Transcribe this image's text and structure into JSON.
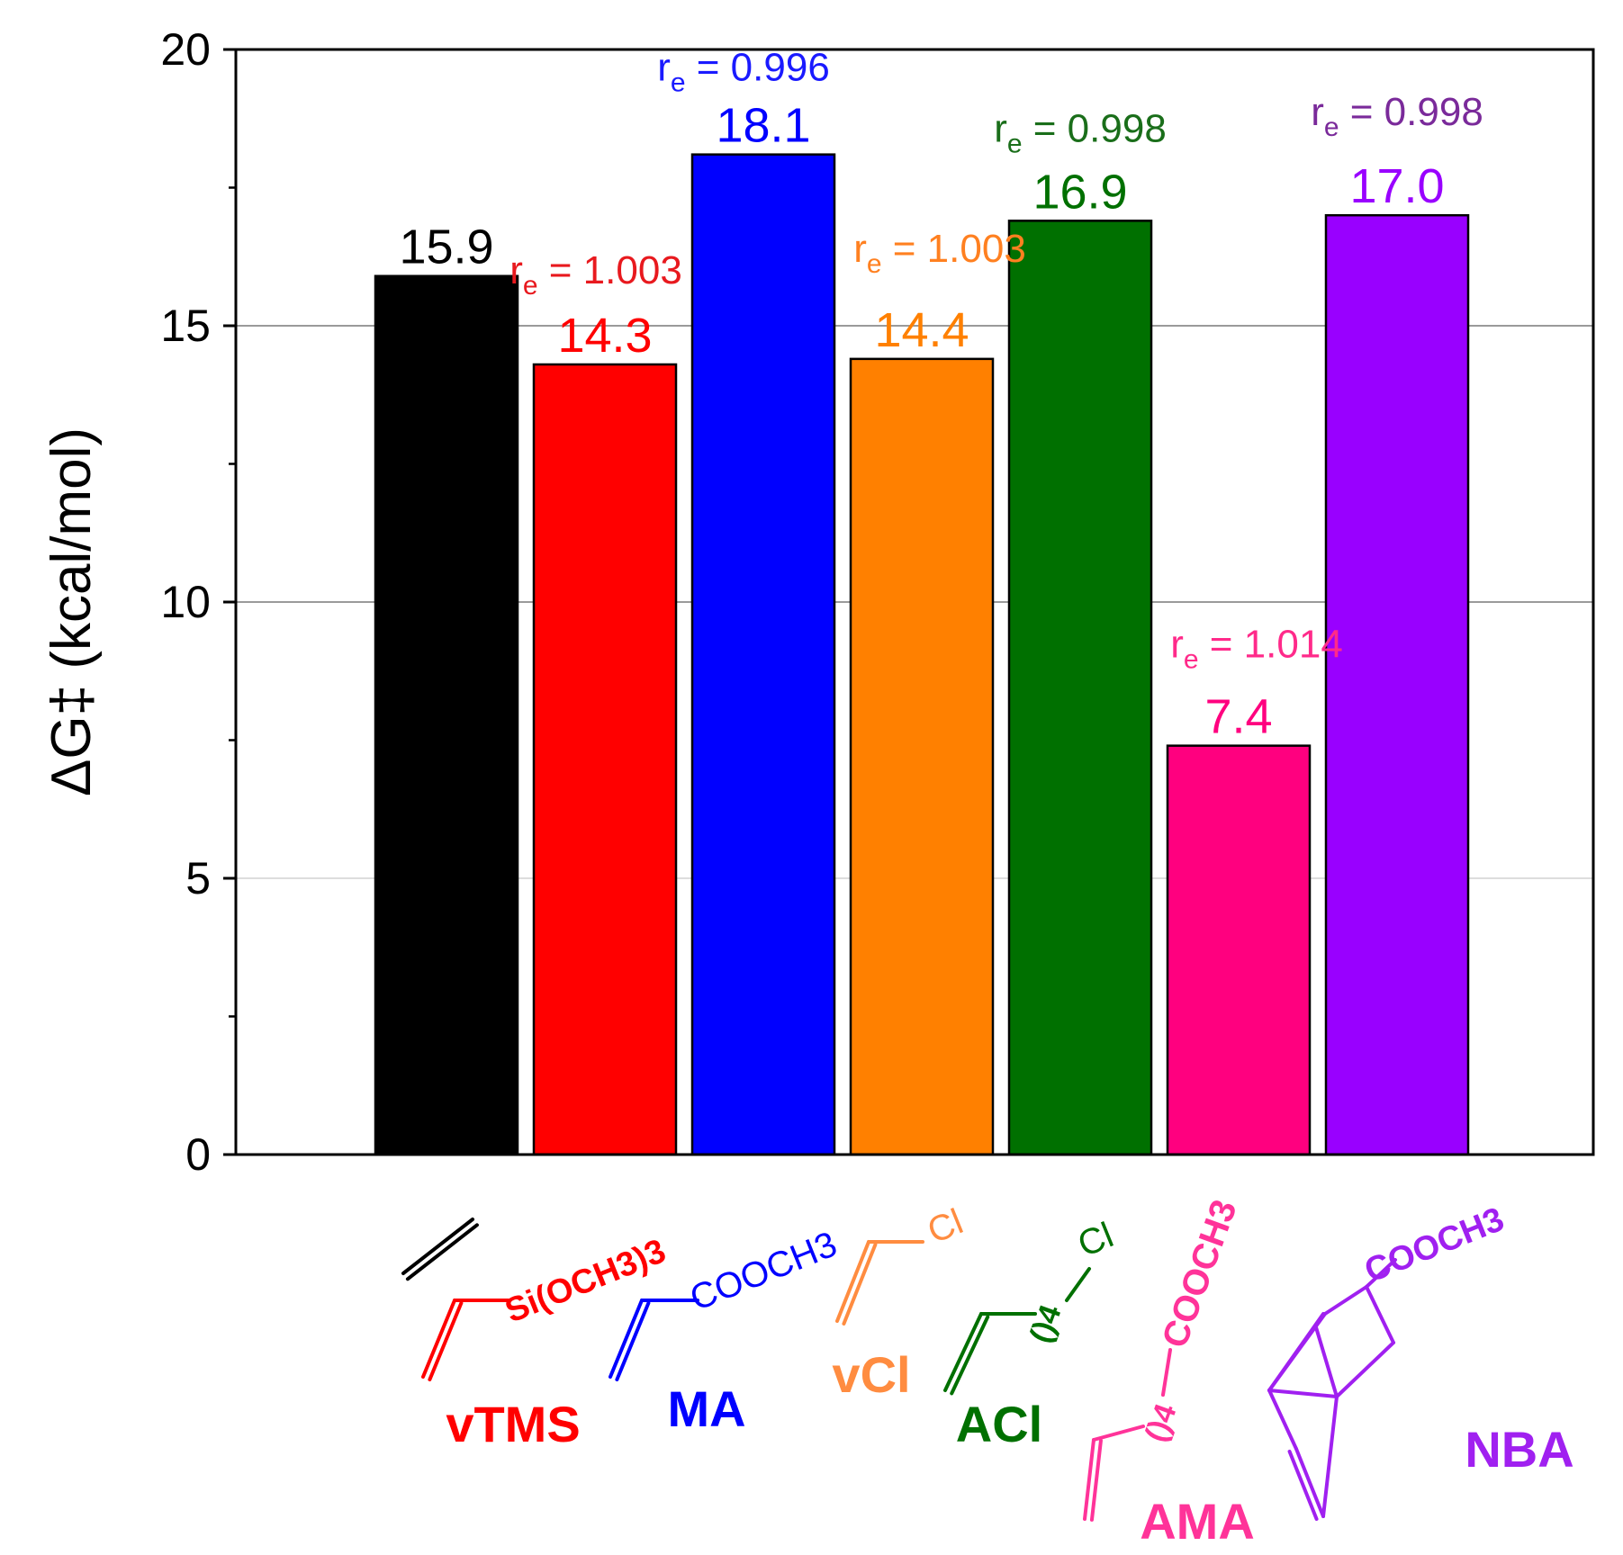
{
  "chart_data": {
    "type": "bar",
    "title": "",
    "xlabel": "",
    "ylabel": "ΔG‡ (kcal/mol)",
    "ylim": [
      0,
      20
    ],
    "yticks": [
      0,
      5,
      10,
      15,
      20
    ],
    "gridlines": [
      5,
      10,
      15
    ],
    "categories": [
      "ethylene",
      "vTMS",
      "MA",
      "vCl",
      "ACl",
      "AMA",
      "NBA"
    ],
    "values": [
      15.9,
      14.3,
      18.1,
      14.4,
      16.9,
      7.4,
      17.0
    ],
    "value_labels": [
      "15.9",
      "14.3",
      "18.1",
      "14.4",
      "16.9",
      "7.4",
      "17.0"
    ],
    "colors": [
      "#000000",
      "#ff0000",
      "#0000ff",
      "#ff8000",
      "#007000",
      "#ff007f",
      "#9900ff"
    ],
    "re_labels": [
      null,
      {
        "prefix": "r",
        "sub": "e",
        "rest": " = 1.003",
        "color": "#e8191e"
      },
      {
        "prefix": "r",
        "sub": "e",
        "rest": " = 0.996",
        "color": "#1a1aff"
      },
      {
        "prefix": "r",
        "sub": "e",
        "rest": " = 1.003",
        "color": "#ff8020"
      },
      {
        "prefix": "r",
        "sub": "e",
        "rest": " = 0.998",
        "color": "#1a6e1a"
      },
      {
        "prefix": "r",
        "sub": "e",
        "rest": " = 1.014",
        "color": "#ff2a8a"
      },
      {
        "prefix": "r",
        "sub": "e",
        "rest": " = 0.998",
        "color": "#7a2a9a"
      }
    ],
    "monomers": [
      {
        "name": "",
        "substituent": "",
        "color": "#000000"
      },
      {
        "name": "vTMS",
        "substituent": "Si(OCH3)3",
        "color": "#ff0000"
      },
      {
        "name": "MA",
        "substituent": "COOCH3",
        "color": "#0000ff"
      },
      {
        "name": "vCl",
        "substituent": "Cl",
        "color": "#ff8c40"
      },
      {
        "name": "ACl",
        "substituent": "Cl",
        "chain": "()4",
        "color": "#007000"
      },
      {
        "name": "AMA",
        "substituent": "COOCH3",
        "chain": "()4",
        "color": "#ff3399"
      },
      {
        "name": "NBA",
        "substituent": "COOCH3",
        "color": "#a020f0"
      }
    ]
  }
}
